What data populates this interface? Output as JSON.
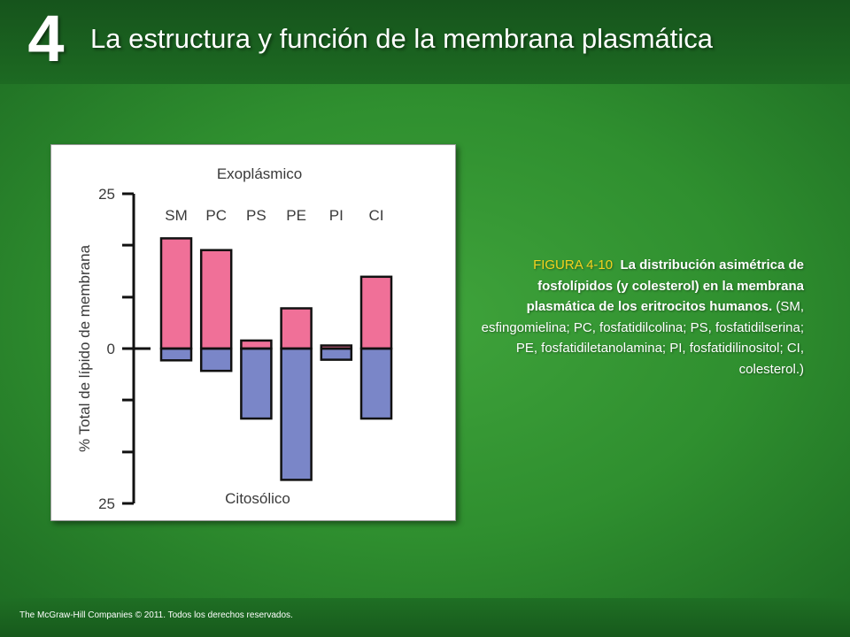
{
  "header": {
    "chapter_number": "4",
    "title": "La estructura y función de la membrana plasmática"
  },
  "footer": {
    "copyright": "The McGraw-Hill Companies © 2011. Todos los derechos reservados."
  },
  "caption": {
    "label": "FIGURA 4-10",
    "bold_text": "La distribución asimétrica de fosfolípidos (y colesterol) en la membrana plasmática de los eritrocitos humanos.",
    "plain_text": "(SM, esfingomielina; PC, fosfatidilcolina; PS, fosfatidilserina; PE, fosfatidiletanolamina; PI, fosfatidilinositol; CI, colesterol.)"
  },
  "chart_data": {
    "type": "bar",
    "top_label": "Exoplásmico",
    "bottom_label": "Citosólico",
    "ylabel": "% Total de lípido de membrana",
    "ylim": [
      -25,
      25
    ],
    "ytick_labels": [
      {
        "value": 25,
        "label": "25"
      },
      {
        "value": 0,
        "label": "0"
      },
      {
        "value": -25,
        "label": "25"
      }
    ],
    "ytick_marks": [
      25,
      16.7,
      8.3,
      0,
      -8.3,
      -16.7,
      -25
    ],
    "categories": [
      "SM",
      "PC",
      "PS",
      "PE",
      "PI",
      "CI"
    ],
    "series": [
      {
        "name": "Exoplásmico",
        "color": "#f07098",
        "values": [
          17.8,
          15.9,
          1.3,
          6.5,
          0.5,
          11.6
        ]
      },
      {
        "name": "Citosólico",
        "color": "#7a86c8",
        "values": [
          -1.9,
          -3.6,
          -11.3,
          -21.2,
          -1.8,
          -11.3
        ]
      }
    ],
    "grid": false
  }
}
